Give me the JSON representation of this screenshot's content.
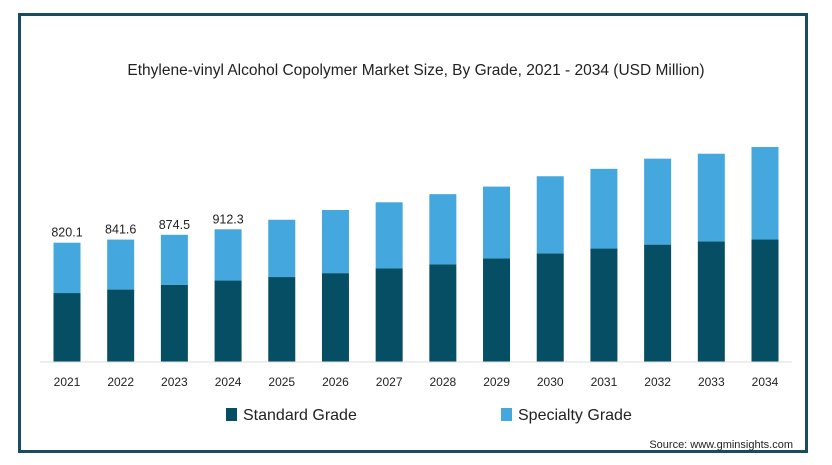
{
  "chart_data": {
    "type": "bar",
    "stacked": true,
    "title": "Ethylene-vinyl Alcohol Copolymer Market Size, By Grade, 2021 - 2034 (USD Million)",
    "xlabel": "",
    "ylabel": "",
    "ylim": [
      0,
      1650
    ],
    "categories": [
      "2021",
      "2022",
      "2023",
      "2024",
      "2025",
      "2026",
      "2027",
      "2028",
      "2029",
      "2030",
      "2031",
      "2032",
      "2033",
      "2034"
    ],
    "series": [
      {
        "name": "Standard Grade",
        "color": "#064e63",
        "values": [
          474,
          498,
          531,
          560,
          584,
          611,
          643,
          672,
          712,
          747,
          780,
          807,
          829,
          842
        ]
      },
      {
        "name": "Specialty Grade",
        "color": "#44a8df",
        "values": [
          346.1,
          343.6,
          343.5,
          352.3,
          394,
          434,
          455,
          482,
          494,
          530,
          548,
          591,
          603,
          636
        ]
      }
    ],
    "data_labels": [
      {
        "category": "2021",
        "text": "820.1"
      },
      {
        "category": "2022",
        "text": "841.6"
      },
      {
        "category": "2023",
        "text": "874.5"
      },
      {
        "category": "2024",
        "text": "912.3"
      }
    ],
    "legend": [
      "Standard Grade",
      "Specialty Grade"
    ],
    "legend_position": "bottom-left"
  },
  "source": "Source: www.gminsights.com"
}
